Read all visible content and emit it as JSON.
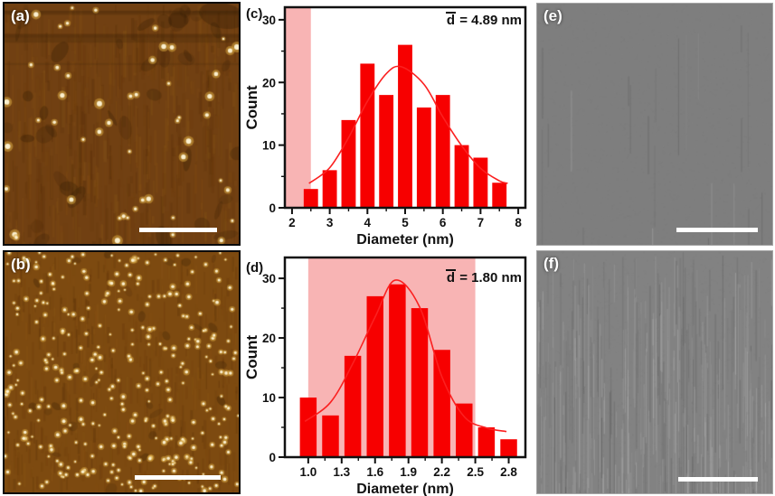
{
  "figure_panels": {
    "a": {
      "label": "(a)",
      "kind": "AFM image",
      "scalebar": "white"
    },
    "b": {
      "label": "(b)",
      "kind": "AFM image",
      "scalebar": "white"
    },
    "e": {
      "label": "(e)",
      "kind": "SEM image",
      "scalebar": "white"
    },
    "f": {
      "label": "(f)",
      "kind": "SEM image",
      "scalebar": "white"
    }
  },
  "chart_data": [
    {
      "id": "c",
      "panel_label": "(c)",
      "type": "bar",
      "title": "",
      "xlabel": "Diameter (nm)",
      "ylabel": "Count",
      "annotation": {
        "symbol": "d",
        "rest": " = 4.89 nm"
      },
      "xlim": [
        1.81,
        8.19
      ],
      "ylim": [
        0,
        32
      ],
      "xticks": [
        2,
        3,
        4,
        5,
        6,
        7,
        8
      ],
      "xtick_labels": [
        "2",
        "3",
        "4",
        "5",
        "6",
        "7",
        "8"
      ],
      "yticks": [
        0,
        10,
        20,
        30
      ],
      "ytick_labels": [
        "0",
        "10",
        "20",
        "30"
      ],
      "bar_centers": [
        2.5,
        3.0,
        3.5,
        4.0,
        4.5,
        5.0,
        5.5,
        6.0,
        6.5,
        7.0,
        7.5
      ],
      "values": [
        3,
        6,
        14,
        23,
        18,
        26,
        16,
        18,
        10,
        8,
        4
      ],
      "bar_width": 0.38,
      "shaded_region": [
        1.81,
        2.5
      ],
      "fit_curve_points": [
        [
          2.45,
          3.9
        ],
        [
          3.0,
          6.4
        ],
        [
          3.5,
          11.2
        ],
        [
          4.0,
          17.0
        ],
        [
          4.5,
          21.4
        ],
        [
          4.9,
          22.5
        ],
        [
          5.5,
          19.7
        ],
        [
          6.0,
          14.5
        ],
        [
          6.5,
          9.9
        ],
        [
          7.0,
          6.3
        ],
        [
          7.5,
          4.3
        ],
        [
          7.72,
          3.9
        ]
      ],
      "legend": "none",
      "grid": false
    },
    {
      "id": "d",
      "panel_label": "(d)",
      "type": "bar",
      "title": "",
      "xlabel": "Diameter (nm)",
      "ylabel": "Count",
      "annotation": {
        "symbol": "d",
        "rest": " = 1.80 nm"
      },
      "xlim": [
        0.79,
        2.95
      ],
      "ylim": [
        0,
        33.5
      ],
      "xticks": [
        1.0,
        1.3,
        1.6,
        1.9,
        2.2,
        2.5,
        2.8
      ],
      "xtick_labels": [
        "1.0",
        "1.3",
        "1.6",
        "1.9",
        "2.2",
        "2.5",
        "2.8"
      ],
      "yticks": [
        0,
        10,
        20,
        30
      ],
      "ytick_labels": [
        "0",
        "10",
        "20",
        "30"
      ],
      "bar_centers": [
        1.0,
        1.2,
        1.4,
        1.6,
        1.8,
        2.0,
        2.2,
        2.4,
        2.6,
        2.8
      ],
      "values": [
        10,
        7,
        17,
        27,
        29,
        25,
        18,
        9,
        5,
        3
      ],
      "bar_width": 0.15,
      "shaded_region": [
        1.0,
        2.5
      ],
      "fit_curve_points": [
        [
          0.97,
          6.0
        ],
        [
          1.2,
          9.2
        ],
        [
          1.4,
          15.7
        ],
        [
          1.6,
          23.5
        ],
        [
          1.78,
          29.7
        ],
        [
          2.0,
          25.2
        ],
        [
          2.2,
          13.5
        ],
        [
          2.4,
          6.8
        ],
        [
          2.6,
          4.9
        ],
        [
          2.78,
          4.3
        ]
      ],
      "legend": "none",
      "grid": false
    }
  ],
  "colors": {
    "bar_red": "#f70000",
    "curve_red": "#fb2020",
    "shade_pink": "#f8b4b4",
    "axis_black": "#111111",
    "afm_a_base": "#714012",
    "afm_b_base": "#7d4a10",
    "afm_spot": "#fff7d8",
    "sem_e_base": "#7e7e7e",
    "sem_f_base": "#828282",
    "scalebar_white": "#ffffff"
  }
}
